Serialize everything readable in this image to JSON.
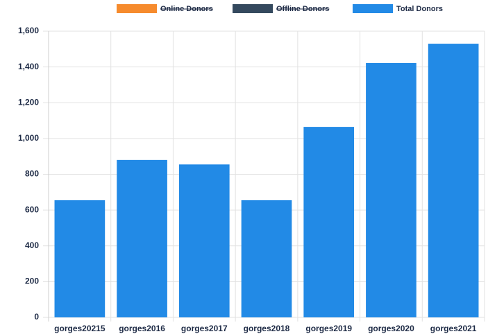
{
  "chart_data": {
    "type": "bar",
    "categories": [
      "gorges20215",
      "gorges2016",
      "gorges2017",
      "gorges2018",
      "gorges2019",
      "gorges2020",
      "gorges2021"
    ],
    "series": [
      {
        "name": "Online Donors",
        "color": "#f68b2d",
        "hidden": true,
        "values": [
          null,
          null,
          null,
          null,
          null,
          null,
          null
        ]
      },
      {
        "name": "Offline Donors",
        "color": "#34495e",
        "hidden": true,
        "values": [
          null,
          null,
          null,
          null,
          null,
          null,
          null
        ]
      },
      {
        "name": "Total Donors",
        "color": "#228ae6",
        "hidden": false,
        "values": [
          655,
          880,
          855,
          655,
          1065,
          1422,
          1530
        ]
      }
    ],
    "ylim": [
      0,
      1600
    ],
    "yticks": [
      0,
      200,
      400,
      600,
      800,
      {
        "value": 1000,
        "label": "1,000"
      },
      {
        "value": 1200,
        "label": "1,200"
      },
      {
        "value": 1400,
        "label": "1,400"
      },
      {
        "value": 1600,
        "label": "1,600"
      }
    ],
    "grid": true,
    "legend": "top"
  }
}
